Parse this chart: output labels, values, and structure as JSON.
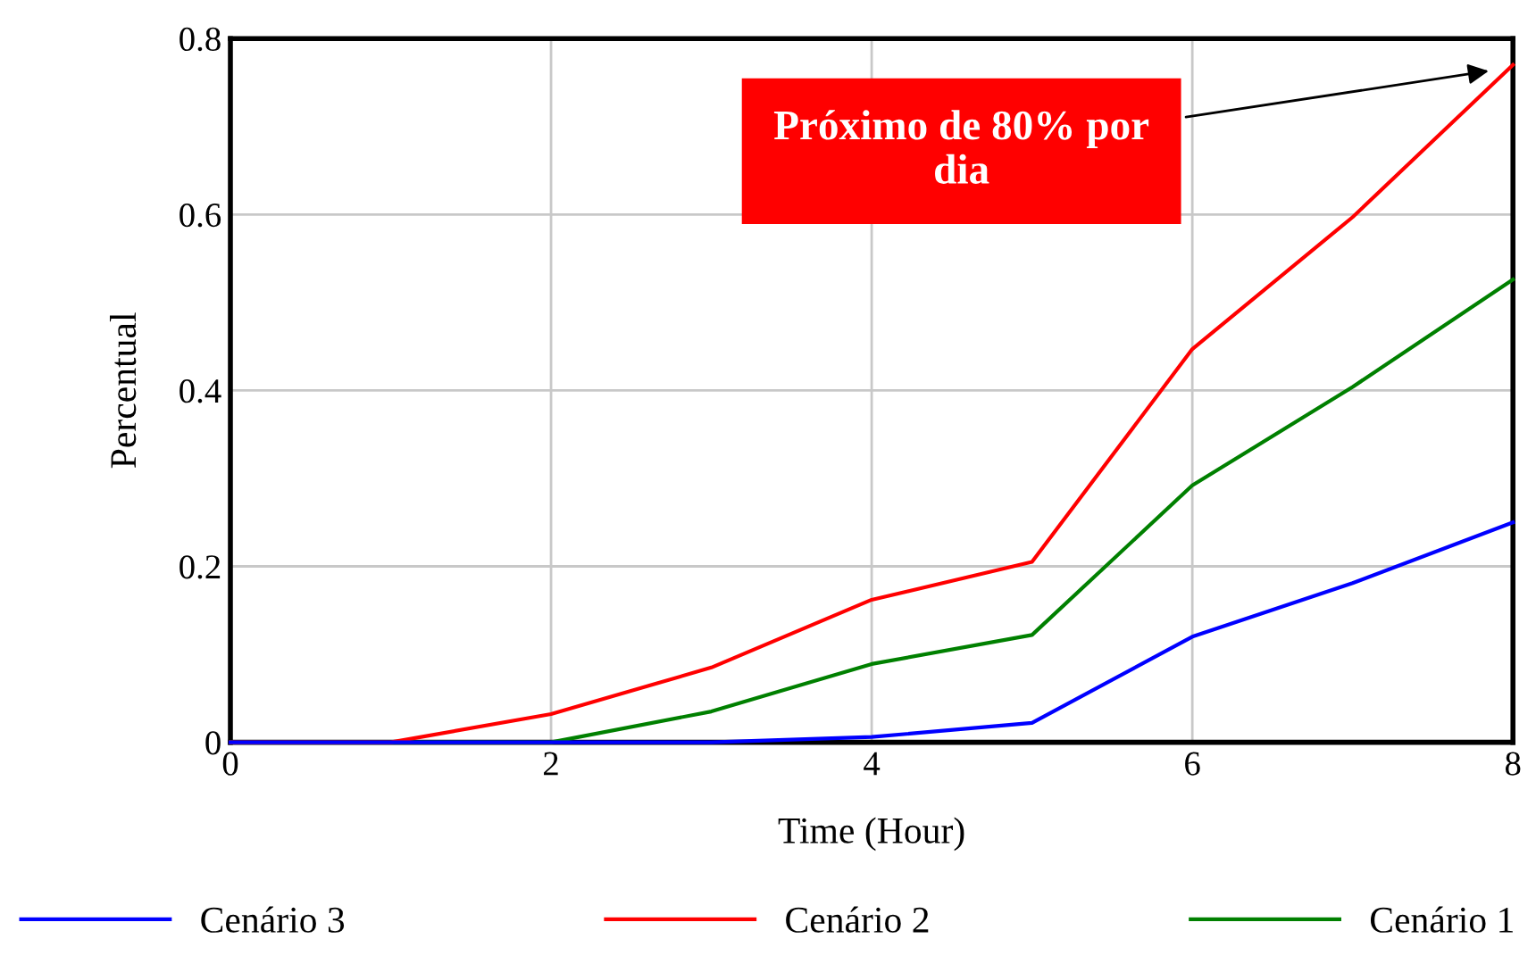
{
  "chart_data": {
    "type": "line",
    "xlabel": "Time (Hour)",
    "ylabel": "Percentual",
    "x": [
      0,
      1,
      2,
      3,
      4,
      5,
      6,
      7,
      8
    ],
    "series": [
      {
        "name": "Cenário 3",
        "color": "#0000ff",
        "values": [
          0,
          0,
          0,
          0,
          0.006,
          0.022,
          0.12,
          0.181,
          0.25
        ]
      },
      {
        "name": "Cenário 2",
        "color": "#ff0000",
        "values": [
          0,
          0,
          0.032,
          0.085,
          0.162,
          0.205,
          0.447,
          0.597,
          0.77
        ]
      },
      {
        "name": "Cenário 1",
        "color": "#008000",
        "values": [
          0,
          0,
          0,
          0.035,
          0.089,
          0.122,
          0.292,
          0.404,
          0.526
        ]
      }
    ],
    "xlim": [
      0,
      8
    ],
    "ylim": [
      0,
      0.8
    ],
    "xticks": [
      0,
      2,
      4,
      6,
      8
    ],
    "yticks": [
      0,
      0.2,
      0.4,
      0.6,
      0.8
    ],
    "annotations": [
      "Próximo de 80% por\ndia"
    ],
    "grid": true,
    "legend": "bottom",
    "marker": "none",
    "line_style": "solid"
  }
}
